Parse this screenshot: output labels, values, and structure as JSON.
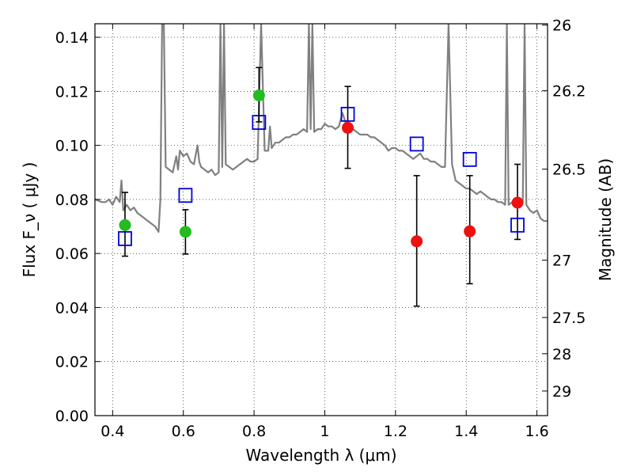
{
  "chart_data": {
    "type": "scatter",
    "xlabel": "Wavelength  λ (μm)",
    "ylabel": "Flux  F_ν  ( μJy )",
    "y2label": "Magnitude (AB)",
    "xlim": [
      0.35,
      1.63
    ],
    "ylim": [
      0.0,
      0.145
    ],
    "x_ticks": [
      "0.4",
      "0.6",
      "0.8",
      "1",
      "1.2",
      "1.4",
      "1.6"
    ],
    "y_ticks": [
      "0.00",
      "0.02",
      "0.04",
      "0.06",
      "0.08",
      "0.10",
      "0.12",
      "0.14"
    ],
    "y2_ticks": [
      {
        "label": "26",
        "flux": 0.1445
      },
      {
        "label": "26.2",
        "flux": 0.1202
      },
      {
        "label": "26.5",
        "flux": 0.0912
      },
      {
        "label": "27",
        "flux": 0.0575
      },
      {
        "label": "27.5",
        "flux": 0.0363
      },
      {
        "label": "28",
        "flux": 0.0229
      },
      {
        "label": "29",
        "flux": 0.0091
      }
    ],
    "grid": true,
    "colors": {
      "model": "#808080",
      "green_points": "#22bb22",
      "red_points": "#ee1111",
      "squares": "#0000dd",
      "errorbars": "#000000"
    },
    "series": [
      {
        "marker": "circle-green",
        "x": [
          0.435,
          0.606,
          0.814
        ],
        "y": [
          0.0705,
          0.068,
          0.1185
        ],
        "yerr_low": [
          0.059,
          0.0598,
          0.1087
        ],
        "yerr_high": [
          0.0826,
          0.0762,
          0.1288
        ]
      },
      {
        "marker": "circle-red",
        "x": [
          1.065,
          1.26,
          1.41,
          1.545
        ],
        "y": [
          0.1065,
          0.0645,
          0.0682,
          0.0788
        ],
        "yerr_low": [
          0.0915,
          0.0405,
          0.0488,
          0.0652
        ],
        "yerr_high": [
          0.1218,
          0.0888,
          0.0888,
          0.093
        ]
      },
      {
        "marker": "square-blue",
        "x": [
          0.435,
          0.606,
          0.814,
          1.065,
          1.26,
          1.41,
          1.545
        ],
        "y": [
          0.0655,
          0.0815,
          0.1085,
          0.1115,
          0.1005,
          0.0948,
          0.0705
        ]
      },
      {
        "marker": "line-model",
        "x": [
          0.35,
          0.37,
          0.38,
          0.39,
          0.4,
          0.41,
          0.42,
          0.425,
          0.43,
          0.44,
          0.45,
          0.46,
          0.47,
          0.48,
          0.49,
          0.5,
          0.51,
          0.52,
          0.53,
          0.535,
          0.54,
          0.545,
          0.55,
          0.56,
          0.57,
          0.58,
          0.585,
          0.59,
          0.6,
          0.61,
          0.62,
          0.63,
          0.64,
          0.645,
          0.65,
          0.66,
          0.67,
          0.68,
          0.69,
          0.7,
          0.705,
          0.71,
          0.715,
          0.72,
          0.73,
          0.74,
          0.75,
          0.76,
          0.77,
          0.78,
          0.79,
          0.8,
          0.81,
          0.82,
          0.83,
          0.84,
          0.845,
          0.85,
          0.86,
          0.87,
          0.88,
          0.89,
          0.9,
          0.91,
          0.92,
          0.93,
          0.94,
          0.95,
          0.955,
          0.96,
          0.965,
          0.97,
          0.98,
          0.99,
          1.0,
          1.01,
          1.02,
          1.03,
          1.04,
          1.05,
          1.06,
          1.07,
          1.08,
          1.09,
          1.1,
          1.11,
          1.12,
          1.13,
          1.14,
          1.15,
          1.16,
          1.17,
          1.18,
          1.19,
          1.2,
          1.21,
          1.22,
          1.23,
          1.24,
          1.25,
          1.26,
          1.27,
          1.28,
          1.29,
          1.3,
          1.31,
          1.32,
          1.33,
          1.34,
          1.35,
          1.36,
          1.37,
          1.38,
          1.39,
          1.4,
          1.41,
          1.42,
          1.43,
          1.44,
          1.45,
          1.46,
          1.47,
          1.48,
          1.49,
          1.5,
          1.51,
          1.515,
          1.52,
          1.53,
          1.54,
          1.55,
          1.56,
          1.565,
          1.57,
          1.58,
          1.59,
          1.6,
          1.61,
          1.62,
          1.63
        ],
        "y": [
          0.08,
          0.079,
          0.079,
          0.08,
          0.078,
          0.081,
          0.079,
          0.087,
          0.076,
          0.078,
          0.076,
          0.077,
          0.075,
          0.074,
          0.073,
          0.072,
          0.071,
          0.07,
          0.068,
          0.08,
          0.145,
          0.145,
          0.092,
          0.091,
          0.09,
          0.096,
          0.091,
          0.098,
          0.096,
          0.097,
          0.094,
          0.093,
          0.1,
          0.094,
          0.092,
          0.091,
          0.09,
          0.091,
          0.089,
          0.09,
          0.145,
          0.092,
          0.145,
          0.093,
          0.092,
          0.091,
          0.092,
          0.093,
          0.094,
          0.095,
          0.094,
          0.094,
          0.095,
          0.145,
          0.098,
          0.098,
          0.107,
          0.099,
          0.101,
          0.101,
          0.102,
          0.103,
          0.103,
          0.104,
          0.104,
          0.105,
          0.106,
          0.105,
          0.145,
          0.106,
          0.145,
          0.105,
          0.106,
          0.106,
          0.108,
          0.107,
          0.107,
          0.106,
          0.107,
          0.112,
          0.108,
          0.106,
          0.106,
          0.105,
          0.104,
          0.104,
          0.104,
          0.103,
          0.103,
          0.102,
          0.101,
          0.1,
          0.098,
          0.099,
          0.099,
          0.098,
          0.098,
          0.097,
          0.096,
          0.095,
          0.096,
          0.097,
          0.095,
          0.095,
          0.094,
          0.094,
          0.093,
          0.092,
          0.092,
          0.145,
          0.093,
          0.087,
          0.086,
          0.085,
          0.084,
          0.084,
          0.083,
          0.082,
          0.083,
          0.082,
          0.081,
          0.08,
          0.08,
          0.079,
          0.079,
          0.078,
          0.145,
          0.078,
          0.079,
          0.078,
          0.077,
          0.079,
          0.145,
          0.078,
          0.076,
          0.075,
          0.076,
          0.073,
          0.072,
          0.072
        ]
      }
    ]
  }
}
